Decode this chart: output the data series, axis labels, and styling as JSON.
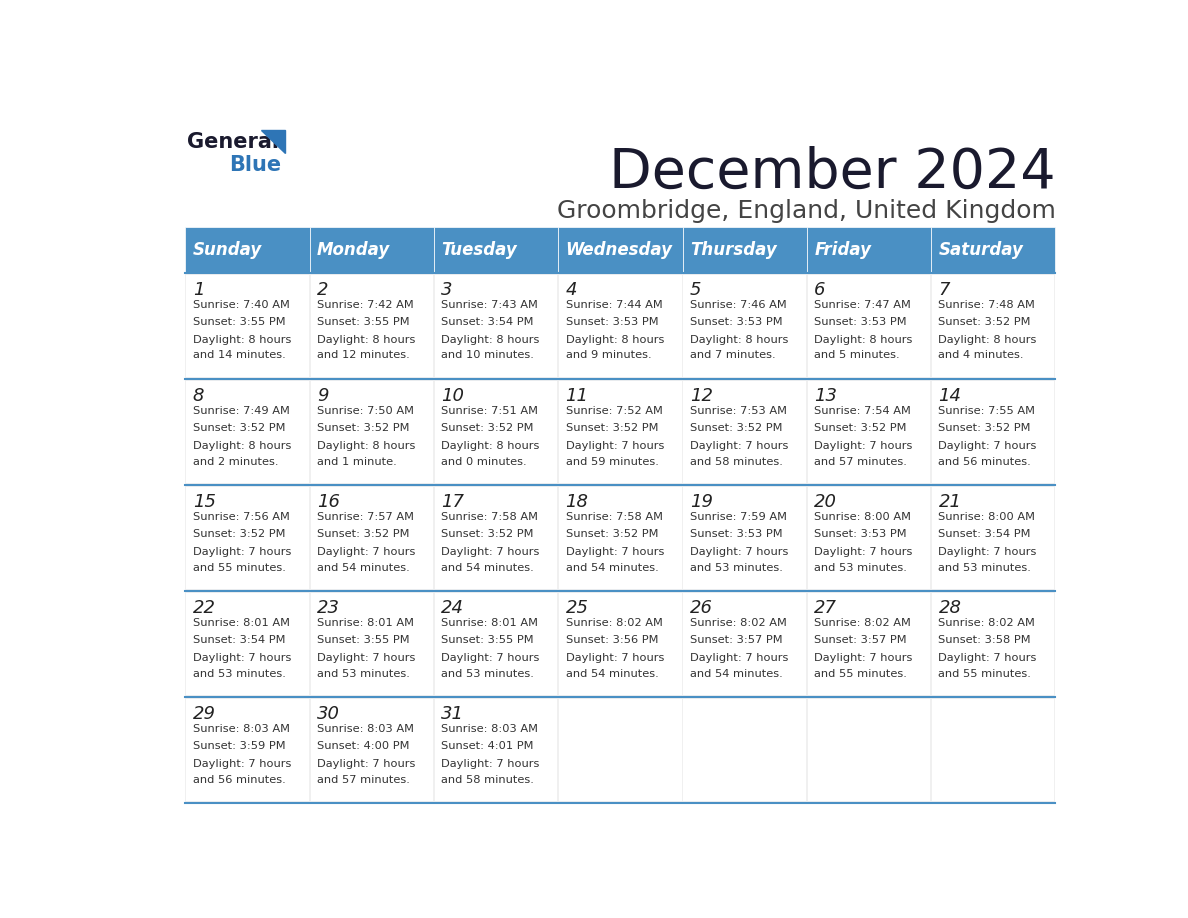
{
  "title": "December 2024",
  "subtitle": "Groombridge, England, United Kingdom",
  "header_bg": "#4a90c4",
  "header_text": "#ffffff",
  "border_color": "#4a90c4",
  "day_names": [
    "Sunday",
    "Monday",
    "Tuesday",
    "Wednesday",
    "Thursday",
    "Friday",
    "Saturday"
  ],
  "title_color": "#1a1a2e",
  "logo_general_color": "#1a1a2e",
  "logo_blue_color": "#2e75b6",
  "calendar": [
    [
      {
        "day": 1,
        "sunrise": "7:40 AM",
        "sunset": "3:55 PM",
        "daylight": "8 hours and 14 minutes."
      },
      {
        "day": 2,
        "sunrise": "7:42 AM",
        "sunset": "3:55 PM",
        "daylight": "8 hours and 12 minutes."
      },
      {
        "day": 3,
        "sunrise": "7:43 AM",
        "sunset": "3:54 PM",
        "daylight": "8 hours and 10 minutes."
      },
      {
        "day": 4,
        "sunrise": "7:44 AM",
        "sunset": "3:53 PM",
        "daylight": "8 hours and 9 minutes."
      },
      {
        "day": 5,
        "sunrise": "7:46 AM",
        "sunset": "3:53 PM",
        "daylight": "8 hours and 7 minutes."
      },
      {
        "day": 6,
        "sunrise": "7:47 AM",
        "sunset": "3:53 PM",
        "daylight": "8 hours and 5 minutes."
      },
      {
        "day": 7,
        "sunrise": "7:48 AM",
        "sunset": "3:52 PM",
        "daylight": "8 hours and 4 minutes."
      }
    ],
    [
      {
        "day": 8,
        "sunrise": "7:49 AM",
        "sunset": "3:52 PM",
        "daylight": "8 hours and 2 minutes."
      },
      {
        "day": 9,
        "sunrise": "7:50 AM",
        "sunset": "3:52 PM",
        "daylight": "8 hours and 1 minute."
      },
      {
        "day": 10,
        "sunrise": "7:51 AM",
        "sunset": "3:52 PM",
        "daylight": "8 hours and 0 minutes."
      },
      {
        "day": 11,
        "sunrise": "7:52 AM",
        "sunset": "3:52 PM",
        "daylight": "7 hours and 59 minutes."
      },
      {
        "day": 12,
        "sunrise": "7:53 AM",
        "sunset": "3:52 PM",
        "daylight": "7 hours and 58 minutes."
      },
      {
        "day": 13,
        "sunrise": "7:54 AM",
        "sunset": "3:52 PM",
        "daylight": "7 hours and 57 minutes."
      },
      {
        "day": 14,
        "sunrise": "7:55 AM",
        "sunset": "3:52 PM",
        "daylight": "7 hours and 56 minutes."
      }
    ],
    [
      {
        "day": 15,
        "sunrise": "7:56 AM",
        "sunset": "3:52 PM",
        "daylight": "7 hours and 55 minutes."
      },
      {
        "day": 16,
        "sunrise": "7:57 AM",
        "sunset": "3:52 PM",
        "daylight": "7 hours and 54 minutes."
      },
      {
        "day": 17,
        "sunrise": "7:58 AM",
        "sunset": "3:52 PM",
        "daylight": "7 hours and 54 minutes."
      },
      {
        "day": 18,
        "sunrise": "7:58 AM",
        "sunset": "3:52 PM",
        "daylight": "7 hours and 54 minutes."
      },
      {
        "day": 19,
        "sunrise": "7:59 AM",
        "sunset": "3:53 PM",
        "daylight": "7 hours and 53 minutes."
      },
      {
        "day": 20,
        "sunrise": "8:00 AM",
        "sunset": "3:53 PM",
        "daylight": "7 hours and 53 minutes."
      },
      {
        "day": 21,
        "sunrise": "8:00 AM",
        "sunset": "3:54 PM",
        "daylight": "7 hours and 53 minutes."
      }
    ],
    [
      {
        "day": 22,
        "sunrise": "8:01 AM",
        "sunset": "3:54 PM",
        "daylight": "7 hours and 53 minutes."
      },
      {
        "day": 23,
        "sunrise": "8:01 AM",
        "sunset": "3:55 PM",
        "daylight": "7 hours and 53 minutes."
      },
      {
        "day": 24,
        "sunrise": "8:01 AM",
        "sunset": "3:55 PM",
        "daylight": "7 hours and 53 minutes."
      },
      {
        "day": 25,
        "sunrise": "8:02 AM",
        "sunset": "3:56 PM",
        "daylight": "7 hours and 54 minutes."
      },
      {
        "day": 26,
        "sunrise": "8:02 AM",
        "sunset": "3:57 PM",
        "daylight": "7 hours and 54 minutes."
      },
      {
        "day": 27,
        "sunrise": "8:02 AM",
        "sunset": "3:57 PM",
        "daylight": "7 hours and 55 minutes."
      },
      {
        "day": 28,
        "sunrise": "8:02 AM",
        "sunset": "3:58 PM",
        "daylight": "7 hours and 55 minutes."
      }
    ],
    [
      {
        "day": 29,
        "sunrise": "8:03 AM",
        "sunset": "3:59 PM",
        "daylight": "7 hours and 56 minutes."
      },
      {
        "day": 30,
        "sunrise": "8:03 AM",
        "sunset": "4:00 PM",
        "daylight": "7 hours and 57 minutes."
      },
      {
        "day": 31,
        "sunrise": "8:03 AM",
        "sunset": "4:01 PM",
        "daylight": "7 hours and 58 minutes."
      },
      null,
      null,
      null,
      null
    ]
  ]
}
